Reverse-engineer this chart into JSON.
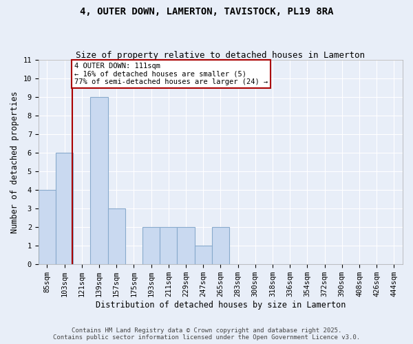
{
  "title": "4, OUTER DOWN, LAMERTON, TAVISTOCK, PL19 8RA",
  "subtitle": "Size of property relative to detached houses in Lamerton",
  "xlabel": "Distribution of detached houses by size in Lamerton",
  "ylabel": "Number of detached properties",
  "bins": [
    "85sqm",
    "103sqm",
    "121sqm",
    "139sqm",
    "157sqm",
    "175sqm",
    "193sqm",
    "211sqm",
    "229sqm",
    "247sqm",
    "265sqm",
    "283sqm",
    "300sqm",
    "318sqm",
    "336sqm",
    "354sqm",
    "372sqm",
    "390sqm",
    "408sqm",
    "426sqm",
    "444sqm"
  ],
  "values": [
    4,
    6,
    0,
    9,
    3,
    0,
    2,
    2,
    2,
    1,
    2,
    0,
    0,
    0,
    0,
    0,
    0,
    0,
    0,
    0,
    0
  ],
  "bar_color": "#c9d9f0",
  "bar_edgecolor": "#88aacc",
  "vline_x_index": 1.44,
  "vline_color": "#aa0000",
  "ylim": [
    0,
    11
  ],
  "yticks": [
    0,
    1,
    2,
    3,
    4,
    5,
    6,
    7,
    8,
    9,
    10,
    11
  ],
  "annotation_text": "4 OUTER DOWN: 111sqm\n← 16% of detached houses are smaller (5)\n77% of semi-detached houses are larger (24) →",
  "annotation_box_color": "#ffffff",
  "annotation_box_edgecolor": "#aa0000",
  "footer_line1": "Contains HM Land Registry data © Crown copyright and database right 2025.",
  "footer_line2": "Contains public sector information licensed under the Open Government Licence v3.0.",
  "background_color": "#e8eef8",
  "grid_color": "#ffffff",
  "title_fontsize": 10,
  "subtitle_fontsize": 9,
  "axis_label_fontsize": 8.5,
  "tick_fontsize": 7.5,
  "annotation_fontsize": 7.5,
  "footer_fontsize": 6.5
}
